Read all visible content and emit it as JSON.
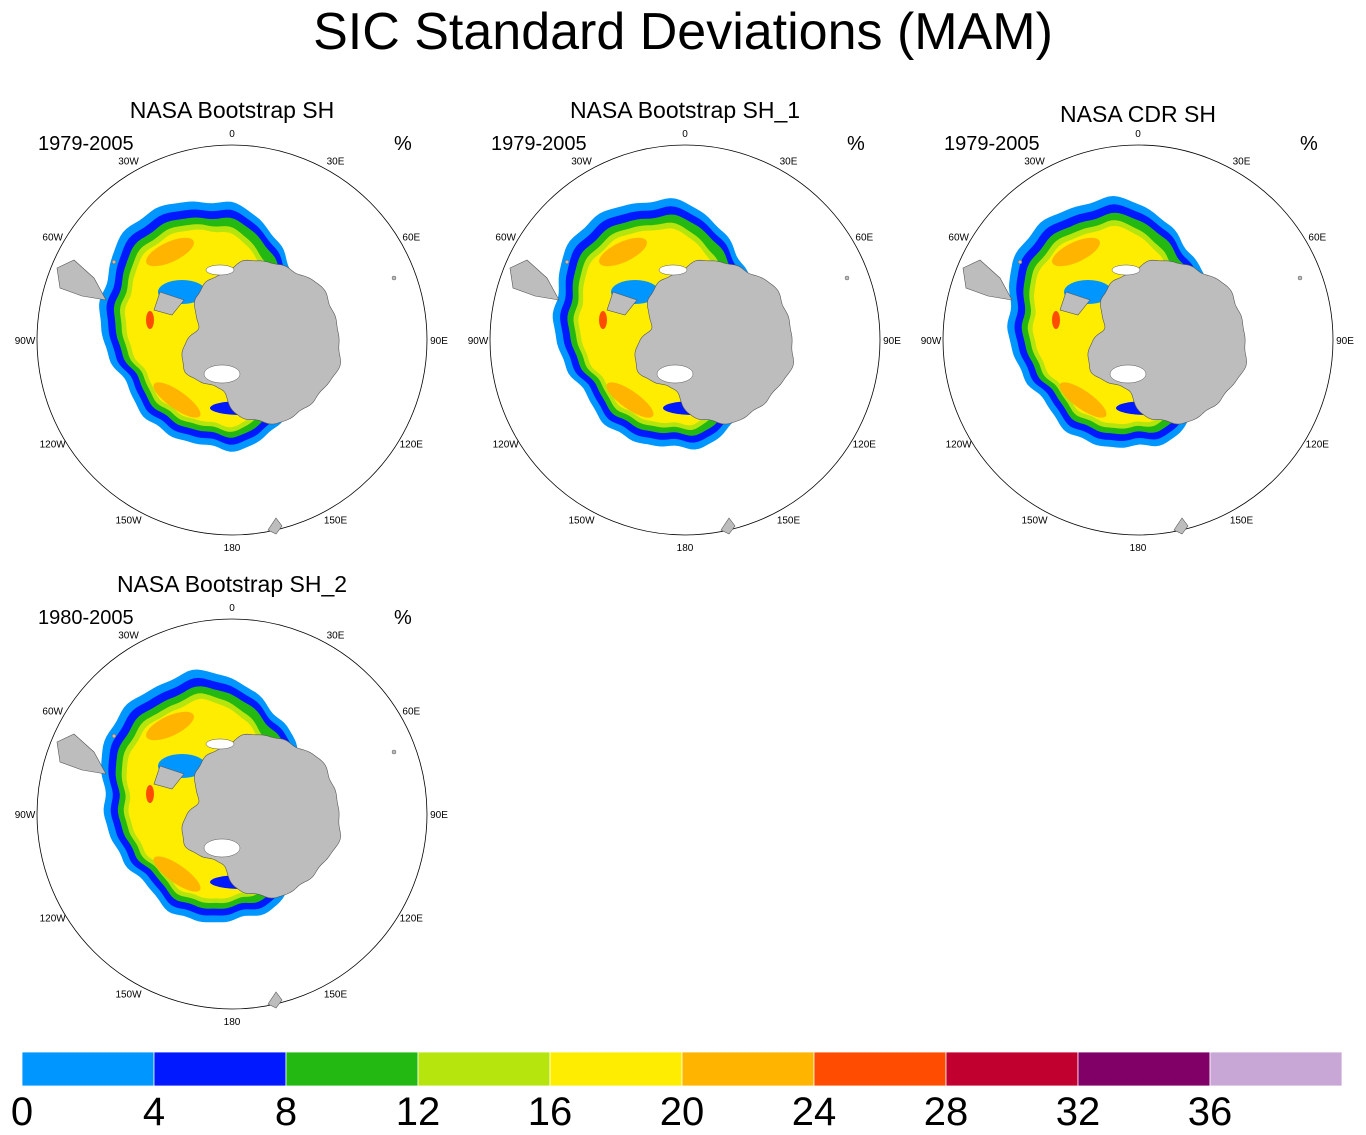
{
  "title": "SIC Standard Deviations (MAM)",
  "panels": [
    {
      "title": "NASA Bootstrap SH",
      "period": "1979-2005",
      "unit": "%"
    },
    {
      "title": "NASA Bootstrap SH_1",
      "period": "1979-2005",
      "unit": "%"
    },
    {
      "title": "NASA CDR SH",
      "period": "1979-2005",
      "unit": "%"
    },
    {
      "title": "NASA Bootstrap SH_2",
      "period": "1980-2005",
      "unit": "%"
    }
  ],
  "longitude_labels": [
    "0",
    "30E",
    "60E",
    "90E",
    "120E",
    "150E",
    "180",
    "150W",
    "120W",
    "90W",
    "60W",
    "30W"
  ],
  "colorbar": {
    "levels": [
      0,
      4,
      8,
      12,
      16,
      20,
      24,
      28,
      32,
      36
    ],
    "labels": [
      "0",
      "4",
      "8",
      "12",
      "16",
      "20",
      "24",
      "28",
      "32",
      "36"
    ],
    "colors": [
      "#0096ff",
      "#0019ff",
      "#23b912",
      "#b6e50e",
      "#ffed00",
      "#ffb500",
      "#ff4c00",
      "#c2002f",
      "#800068",
      "#c8a6d6"
    ]
  },
  "colors": {
    "land": "#bdbdbd",
    "ocean": "#ffffff",
    "outline": "#555555"
  }
}
